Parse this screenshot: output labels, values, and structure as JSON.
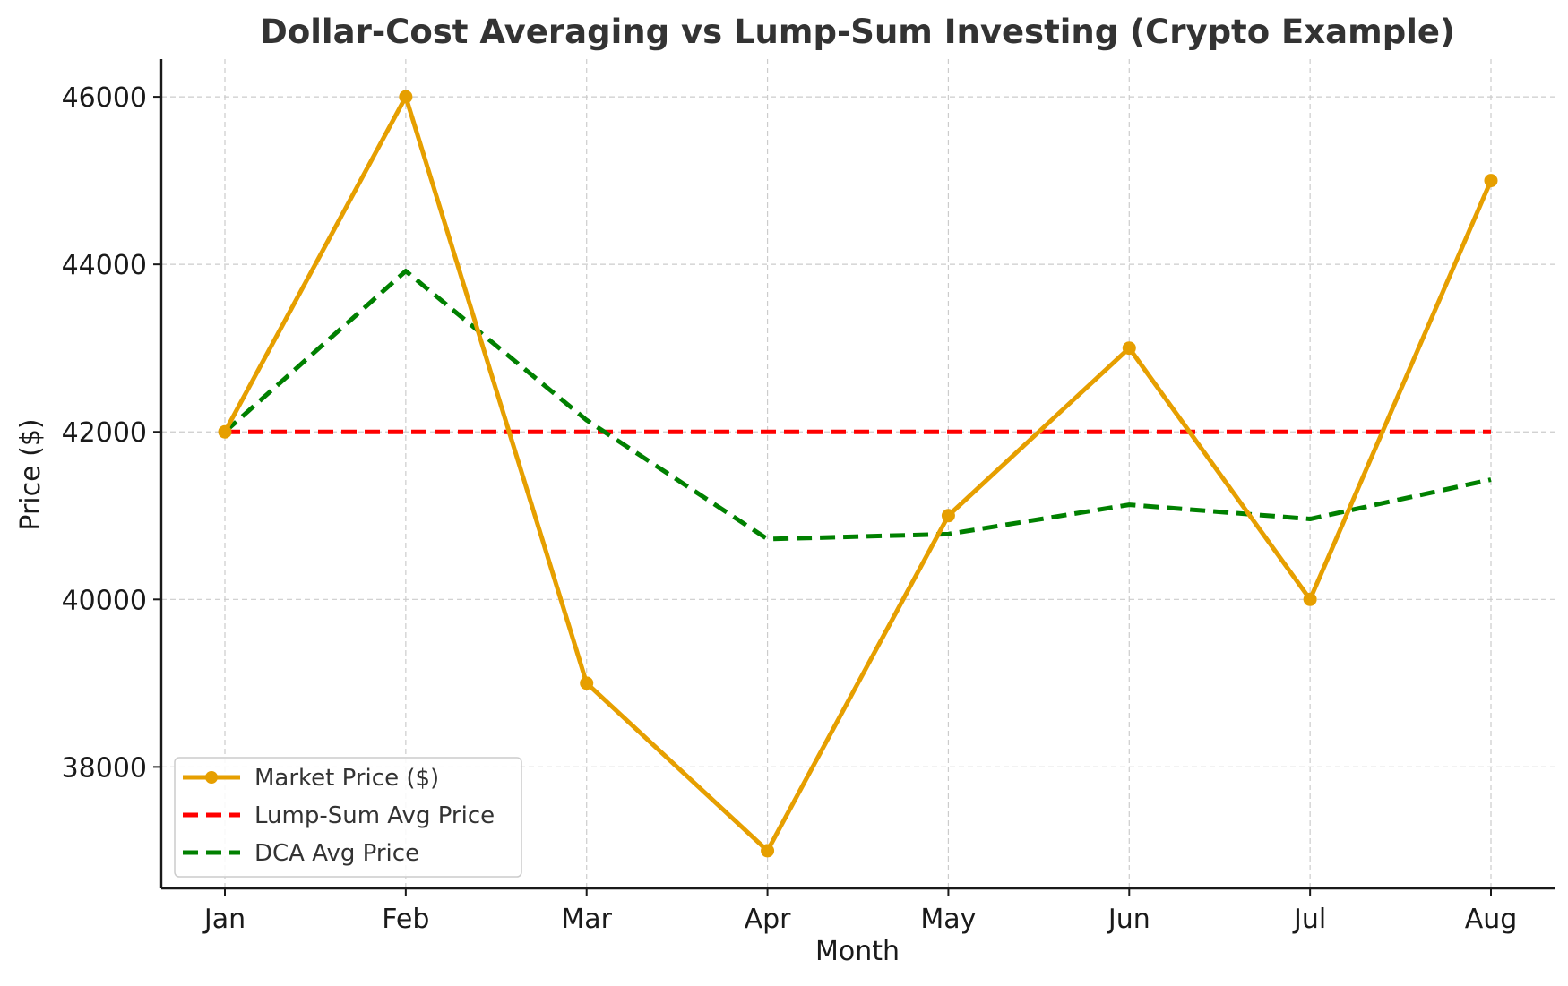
{
  "chart_data": {
    "type": "line",
    "title": "Dollar-Cost Averaging vs Lump-Sum Investing (Crypto Example)",
    "xlabel": "Month",
    "ylabel": "Price ($)",
    "categories": [
      "Jan",
      "Feb",
      "Mar",
      "Apr",
      "May",
      "Jun",
      "Jul",
      "Aug"
    ],
    "ylim": [
      36550,
      46450
    ],
    "yticks": [
      38000,
      40000,
      42000,
      44000,
      46000
    ],
    "grid": true,
    "legend_position": "lower-left",
    "series": [
      {
        "name": "Market Price ($)",
        "values": [
          42000,
          46000,
          39000,
          37000,
          41000,
          43000,
          40000,
          45000
        ],
        "color": "#E69F00",
        "style": "solid",
        "markers": true
      },
      {
        "name": "Lump-Sum Avg Price",
        "values": [
          42000,
          42000,
          42000,
          42000,
          42000,
          42000,
          42000,
          42000
        ],
        "color": "#FF0000",
        "style": "dashed",
        "markers": false
      },
      {
        "name": "DCA Avg Price",
        "values": [
          42000,
          43920,
          42140,
          40720,
          40780,
          41130,
          40960,
          41430
        ],
        "color": "#008000",
        "style": "dashed",
        "markers": false
      }
    ]
  }
}
